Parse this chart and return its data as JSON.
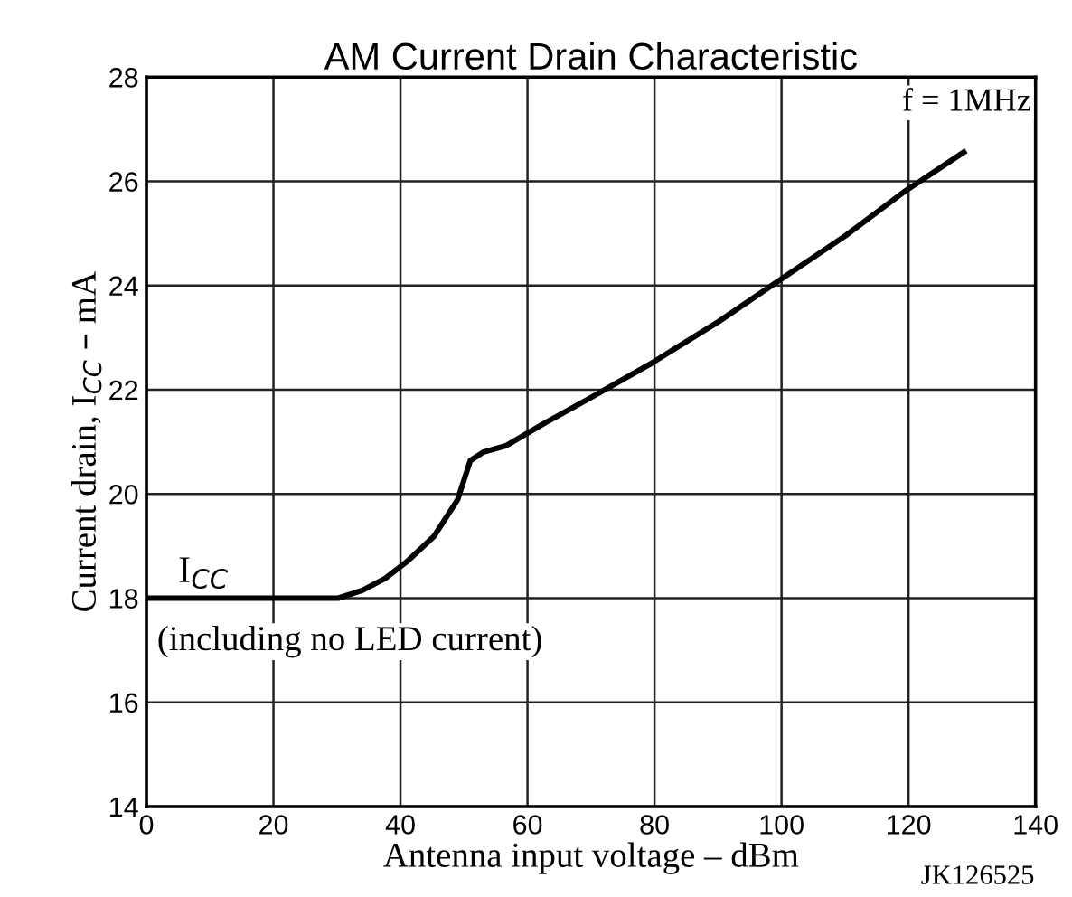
{
  "chart_data": {
    "type": "line",
    "title": "AM Current Drain Characteristic",
    "xlabel": "Antenna input voltage – dBm",
    "ylabel": "Current drain, I$_{CC}$ – mA",
    "x": [
      0,
      10,
      20,
      30.2,
      34,
      37.6,
      41,
      45.3,
      49,
      51,
      53,
      56.7,
      62.4,
      70,
      79.4,
      90,
      99.4,
      110,
      119.3,
      128.7
    ],
    "values": [
      18,
      18,
      18,
      18,
      18.15,
      18.38,
      18.7,
      19.19,
      19.89,
      20.64,
      20.8,
      20.93,
      21.34,
      21.85,
      22.5,
      23.3,
      24.08,
      24.95,
      25.8,
      26.56
    ],
    "color": "#000000",
    "line_style": "solid",
    "marker": "none",
    "xlim": [
      0,
      140
    ],
    "xticks": [
      0,
      20,
      40,
      60,
      80,
      100,
      120,
      140
    ],
    "ylim": [
      14,
      28
    ],
    "yticks": [
      14,
      16,
      18,
      20,
      22,
      24,
      26,
      28
    ],
    "grid": true,
    "legend": false,
    "annotations": [
      {
        "text": "I$_{CC}$",
        "x": 5,
        "y": 18
      },
      "(including no LED current)",
      "f = 1MHz",
      "JK126525"
    ]
  }
}
